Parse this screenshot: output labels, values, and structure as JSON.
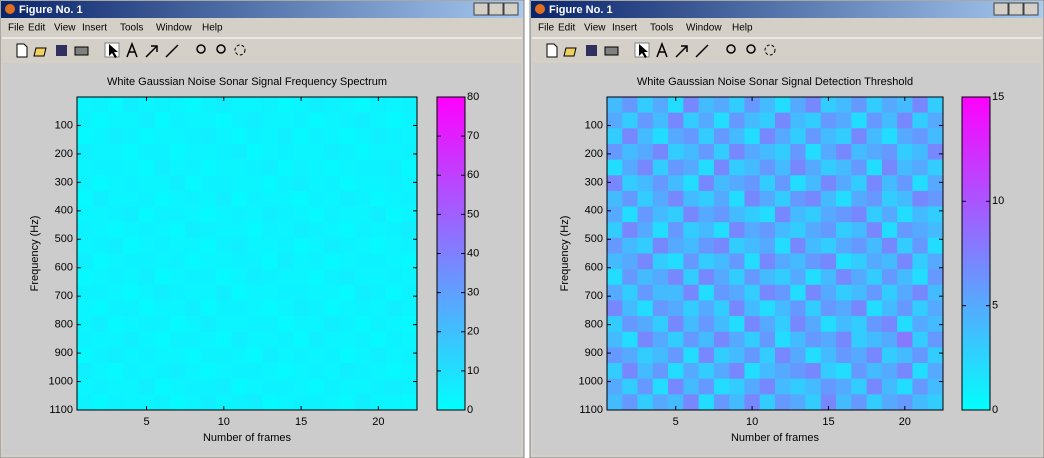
{
  "windows": [
    {
      "title": "Figure No. 1",
      "menu": [
        "File",
        "Edit",
        "View",
        "Insert",
        "Tools",
        "Window",
        "Help"
      ]
    },
    {
      "title": "Figure No. 1",
      "menu": [
        "File",
        "Edit",
        "View",
        "Insert",
        "Tools",
        "Window",
        "Help"
      ]
    }
  ],
  "chart_data": [
    {
      "type": "heatmap",
      "title": "White Gaussian Noise Sonar Signal Frequency Spectrum",
      "x_label": "Number of frames",
      "y_label": "Frequency (Hz)",
      "xlim": [
        0.5,
        22.5
      ],
      "xticks": [
        5,
        10,
        15,
        20
      ],
      "ylim": [
        0,
        1100
      ],
      "y_reversed": true,
      "yticks": [
        100,
        200,
        300,
        400,
        500,
        600,
        700,
        800,
        900,
        1000,
        1100
      ],
      "colormap": "cool",
      "clim": [
        0,
        80
      ],
      "cticks": [
        0,
        10,
        20,
        30,
        40,
        50,
        60,
        70,
        80
      ],
      "z": [
        [
          3,
          4,
          2,
          5,
          3,
          4,
          3,
          2,
          4,
          5,
          3,
          3,
          4,
          2,
          3,
          5,
          4,
          3,
          2,
          4,
          3,
          4
        ],
        [
          4,
          2,
          3,
          3,
          5,
          2,
          4,
          3,
          3,
          2,
          4,
          5,
          3,
          3,
          4,
          2,
          3,
          4,
          5,
          3,
          2,
          3
        ],
        [
          2,
          3,
          5,
          4,
          2,
          3,
          3,
          4,
          5,
          3,
          2,
          4,
          3,
          5,
          2,
          4,
          3,
          2,
          3,
          5,
          4,
          3
        ],
        [
          5,
          3,
          3,
          2,
          4,
          4,
          2,
          3,
          3,
          4,
          5,
          2,
          3,
          4,
          3,
          3,
          5,
          4,
          2,
          3,
          3,
          4
        ],
        [
          3,
          4,
          4,
          3,
          2,
          5,
          3,
          4,
          2,
          3,
          3,
          4,
          5,
          2,
          4,
          3,
          2,
          3,
          4,
          4,
          5,
          2
        ],
        [
          4,
          2,
          3,
          4,
          3,
          3,
          5,
          2,
          4,
          4,
          3,
          3,
          2,
          4,
          5,
          3,
          4,
          2,
          3,
          3,
          4,
          3
        ],
        [
          2,
          5,
          3,
          3,
          4,
          2,
          3,
          4,
          3,
          5,
          2,
          4,
          3,
          3,
          2,
          4,
          3,
          5,
          4,
          2,
          3,
          4
        ],
        [
          3,
          3,
          4,
          5,
          2,
          4,
          4,
          3,
          2,
          3,
          4,
          3,
          5,
          4,
          3,
          2,
          4,
          3,
          3,
          5,
          2,
          3
        ],
        [
          4,
          3,
          2,
          3,
          4,
          3,
          2,
          5,
          4,
          3,
          3,
          2,
          4,
          3,
          5,
          4,
          3,
          2,
          4,
          3,
          4,
          5
        ],
        [
          3,
          4,
          5,
          2,
          3,
          4,
          3,
          3,
          2,
          4,
          5,
          3,
          3,
          4,
          2,
          3,
          5,
          4,
          3,
          2,
          3,
          4
        ],
        [
          5,
          2,
          3,
          4,
          4,
          3,
          4,
          2,
          3,
          3,
          4,
          4,
          2,
          5,
          3,
          4,
          2,
          3,
          4,
          4,
          3,
          2
        ],
        [
          2,
          3,
          4,
          3,
          5,
          2,
          3,
          4,
          4,
          2,
          3,
          5,
          4,
          3,
          3,
          2,
          4,
          5,
          3,
          3,
          4,
          3
        ],
        [
          4,
          4,
          3,
          2,
          3,
          5,
          4,
          3,
          3,
          5,
          2,
          3,
          3,
          4,
          4,
          3,
          3,
          2,
          5,
          4,
          2,
          4
        ],
        [
          3,
          2,
          4,
          4,
          2,
          3,
          3,
          5,
          2,
          4,
          4,
          3,
          2,
          3,
          5,
          4,
          2,
          3,
          4,
          3,
          5,
          3
        ],
        [
          3,
          5,
          2,
          3,
          4,
          4,
          2,
          3,
          5,
          3,
          3,
          4,
          4,
          2,
          3,
          3,
          5,
          4,
          2,
          4,
          3,
          2
        ],
        [
          4,
          3,
          3,
          5,
          3,
          2,
          4,
          4,
          3,
          2,
          5,
          3,
          3,
          4,
          2,
          5,
          3,
          3,
          4,
          2,
          4,
          3
        ],
        [
          2,
          4,
          5,
          3,
          4,
          3,
          3,
          2,
          4,
          4,
          3,
          2,
          5,
          3,
          4,
          3,
          4,
          2,
          3,
          5,
          3,
          4
        ],
        [
          5,
          3,
          2,
          4,
          3,
          4,
          5,
          3,
          2,
          3,
          4,
          4,
          3,
          2,
          3,
          4,
          3,
          5,
          4,
          3,
          2,
          3
        ],
        [
          3,
          4,
          3,
          3,
          5,
          2,
          3,
          4,
          4,
          5,
          2,
          3,
          4,
          4,
          3,
          2,
          4,
          3,
          3,
          4,
          5,
          4
        ],
        [
          4,
          2,
          4,
          3,
          3,
          4,
          2,
          3,
          5,
          3,
          4,
          5,
          2,
          3,
          4,
          4,
          3,
          2,
          5,
          3,
          3,
          2
        ]
      ]
    },
    {
      "type": "heatmap",
      "title": "White Gaussian Noise Sonar Signal Detection Threshold",
      "x_label": "Number of frames",
      "y_label": "Frequency (Hz)",
      "xlim": [
        0.5,
        22.5
      ],
      "xticks": [
        5,
        10,
        15,
        20
      ],
      "ylim": [
        0,
        1100
      ],
      "y_reversed": true,
      "yticks": [
        100,
        200,
        300,
        400,
        500,
        600,
        700,
        800,
        900,
        1000,
        1100
      ],
      "colormap": "cool",
      "clim": [
        0,
        15
      ],
      "cticks": [
        0,
        5,
        10,
        15
      ],
      "z": [
        [
          4,
          6,
          3,
          5,
          2,
          7,
          4,
          5,
          3,
          6,
          4,
          2,
          5,
          7,
          3,
          4,
          6,
          3,
          5,
          4,
          7,
          3
        ],
        [
          5,
          3,
          6,
          4,
          7,
          3,
          5,
          2,
          6,
          4,
          3,
          7,
          4,
          3,
          6,
          5,
          2,
          6,
          4,
          7,
          3,
          5
        ],
        [
          3,
          7,
          4,
          2,
          5,
          6,
          3,
          6,
          4,
          2,
          7,
          5,
          3,
          6,
          4,
          3,
          7,
          4,
          2,
          5,
          6,
          4
        ],
        [
          6,
          4,
          5,
          7,
          3,
          4,
          6,
          3,
          7,
          5,
          4,
          3,
          6,
          2,
          5,
          7,
          4,
          5,
          6,
          3,
          4,
          7
        ],
        [
          2,
          5,
          7,
          3,
          6,
          5,
          2,
          7,
          3,
          4,
          6,
          4,
          7,
          5,
          3,
          4,
          6,
          2,
          7,
          4,
          5,
          3
        ],
        [
          7,
          3,
          4,
          6,
          4,
          2,
          7,
          4,
          5,
          6,
          3,
          6,
          2,
          4,
          7,
          5,
          3,
          7,
          4,
          6,
          2,
          5
        ],
        [
          4,
          6,
          3,
          5,
          7,
          4,
          3,
          5,
          2,
          7,
          5,
          3,
          6,
          7,
          4,
          2,
          5,
          6,
          3,
          4,
          7,
          6
        ],
        [
          5,
          2,
          6,
          4,
          3,
          7,
          5,
          6,
          4,
          3,
          2,
          7,
          4,
          3,
          5,
          6,
          7,
          3,
          5,
          2,
          4,
          3
        ],
        [
          3,
          7,
          5,
          2,
          6,
          3,
          4,
          2,
          7,
          5,
          6,
          4,
          3,
          5,
          6,
          3,
          4,
          7,
          2,
          6,
          5,
          4
        ],
        [
          6,
          4,
          3,
          7,
          5,
          4,
          6,
          7,
          3,
          4,
          5,
          2,
          7,
          4,
          3,
          5,
          6,
          4,
          7,
          3,
          6,
          2
        ],
        [
          4,
          5,
          7,
          3,
          2,
          6,
          3,
          4,
          6,
          2,
          7,
          5,
          4,
          6,
          7,
          2,
          3,
          5,
          4,
          7,
          3,
          5
        ],
        [
          2,
          6,
          4,
          5,
          7,
          3,
          7,
          5,
          3,
          6,
          4,
          3,
          5,
          2,
          4,
          7,
          5,
          3,
          6,
          4,
          2,
          6
        ],
        [
          5,
          3,
          6,
          4,
          4,
          7,
          2,
          6,
          5,
          3,
          7,
          6,
          2,
          7,
          5,
          3,
          4,
          6,
          3,
          5,
          7,
          4
        ],
        [
          7,
          4,
          2,
          6,
          5,
          3,
          5,
          3,
          7,
          4,
          2,
          4,
          6,
          3,
          6,
          5,
          7,
          2,
          4,
          6,
          3,
          5
        ],
        [
          3,
          6,
          5,
          3,
          7,
          4,
          6,
          4,
          2,
          7,
          5,
          3,
          7,
          5,
          2,
          4,
          3,
          6,
          7,
          2,
          5,
          4
        ],
        [
          4,
          2,
          7,
          5,
          3,
          6,
          4,
          7,
          5,
          3,
          6,
          2,
          4,
          6,
          5,
          7,
          3,
          4,
          5,
          8,
          3,
          6
        ],
        [
          6,
          5,
          3,
          4,
          6,
          2,
          7,
          3,
          4,
          6,
          3,
          7,
          5,
          2,
          4,
          6,
          5,
          7,
          3,
          4,
          6,
          3
        ],
        [
          3,
          7,
          4,
          6,
          2,
          5,
          3,
          5,
          7,
          2,
          4,
          5,
          6,
          7,
          3,
          2,
          6,
          4,
          5,
          7,
          2,
          5
        ],
        [
          5,
          3,
          6,
          2,
          7,
          4,
          6,
          2,
          3,
          5,
          7,
          4,
          3,
          4,
          6,
          5,
          3,
          7,
          4,
          2,
          6,
          4
        ],
        [
          4,
          6,
          3,
          5,
          4,
          7,
          2,
          6,
          4,
          7,
          3,
          6,
          5,
          3,
          7,
          4,
          6,
          3,
          5,
          6,
          4,
          3
        ]
      ]
    }
  ]
}
